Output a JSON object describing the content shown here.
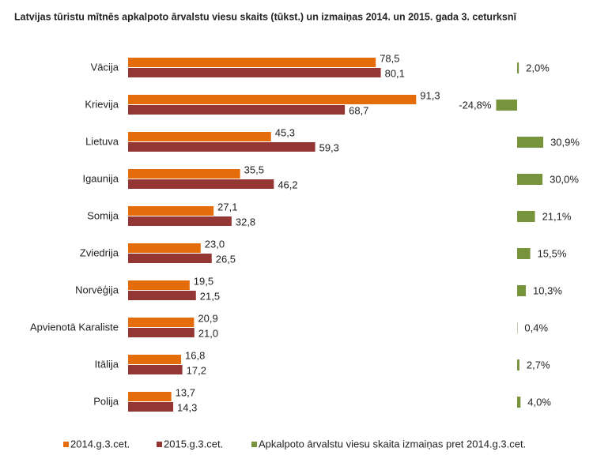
{
  "chart_data": {
    "type": "bar",
    "orientation": "horizontal",
    "title": "Latvijas tūristu mītnēs apkalpoto ārvalstu viesu skaits (tūkst.) un izmaiņas 2014. un 2015. gada 3. ceturksnī",
    "categories": [
      "Vācija",
      "Krievija",
      "Lietuva",
      "Igaunija",
      "Somija",
      "Zviedrija",
      "Norvēģija",
      "Apvienotā Karaliste",
      "Itālija",
      "Polija"
    ],
    "series": [
      {
        "name": "2014.g.3.cet.",
        "color": "#e46c0a",
        "values": [
          78.5,
          91.3,
          45.3,
          35.5,
          27.1,
          23.0,
          19.5,
          20.9,
          16.8,
          13.7
        ],
        "value_labels": [
          "78,5",
          "91,3",
          "45,3",
          "35,5",
          "27,1",
          "23,0",
          "19,5",
          "20,9",
          "16,8",
          "13,7"
        ]
      },
      {
        "name": "2015.g.3.cet.",
        "color": "#943634",
        "values": [
          80.1,
          68.7,
          59.3,
          46.2,
          32.8,
          26.5,
          21.5,
          21.0,
          17.2,
          14.3
        ],
        "value_labels": [
          "80,1",
          "68,7",
          "59,3",
          "46,2",
          "32,8",
          "26,5",
          "21,5",
          "21,0",
          "17,2",
          "14,3"
        ]
      },
      {
        "name": "Apkalpoto ārvalstu viesu skaita izmaiņas pret 2014.g.3.cet.",
        "color": "#77933c",
        "axis": "x2",
        "values": [
          2.0,
          -24.8,
          30.9,
          30.0,
          21.1,
          15.5,
          10.3,
          0.4,
          2.7,
          4.0
        ],
        "value_labels": [
          "2,0%",
          "-24,8%",
          "30,9%",
          "30,0%",
          "21,1%",
          "15,5%",
          "10,3%",
          "0,4%",
          "2,7%",
          "4,0%"
        ]
      }
    ],
    "legend": "bottom"
  }
}
